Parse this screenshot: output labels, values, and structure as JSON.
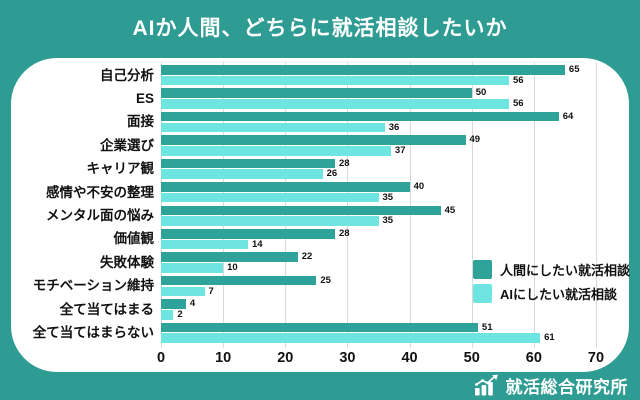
{
  "title": "AIか人間、どちらに就活相談したいか",
  "colors": {
    "background": "#2E9C92",
    "card": "#FFFFFF",
    "human_bar": "#2FA29A",
    "ai_bar": "#6FE5E2",
    "gridline": "#D9D9D9",
    "text": "#111111",
    "title_text": "#FFFFFF"
  },
  "chart_data": {
    "type": "bar",
    "orientation": "horizontal",
    "title": "AIか人間、どちらに就活相談したいか",
    "categories": [
      "自己分析",
      "ES",
      "面接",
      "企業選び",
      "キャリア観",
      "感情や不安の整理",
      "メンタル面の悩み",
      "価値観",
      "失敗体験",
      "モチベーション維持",
      "全て当てはまる",
      "全て当てはまらない"
    ],
    "series": [
      {
        "name": "人間にしたい就活相談",
        "color": "#2FA29A",
        "values": [
          65,
          50,
          64,
          49,
          28,
          40,
          45,
          28,
          22,
          25,
          4,
          51
        ]
      },
      {
        "name": "AIにしたい就活相談",
        "color": "#6FE5E2",
        "values": [
          56,
          56,
          36,
          37,
          26,
          35,
          35,
          14,
          10,
          7,
          2,
          61
        ]
      }
    ],
    "xlim": [
      0,
      70
    ],
    "xticks": [
      0,
      10,
      20,
      30,
      40,
      50,
      60,
      70
    ],
    "grid": true,
    "value_labels": true,
    "legend_position": "right-middle"
  },
  "footer": {
    "brand": "就活総合研究所",
    "brand_icon": "growth-chart-icon"
  }
}
